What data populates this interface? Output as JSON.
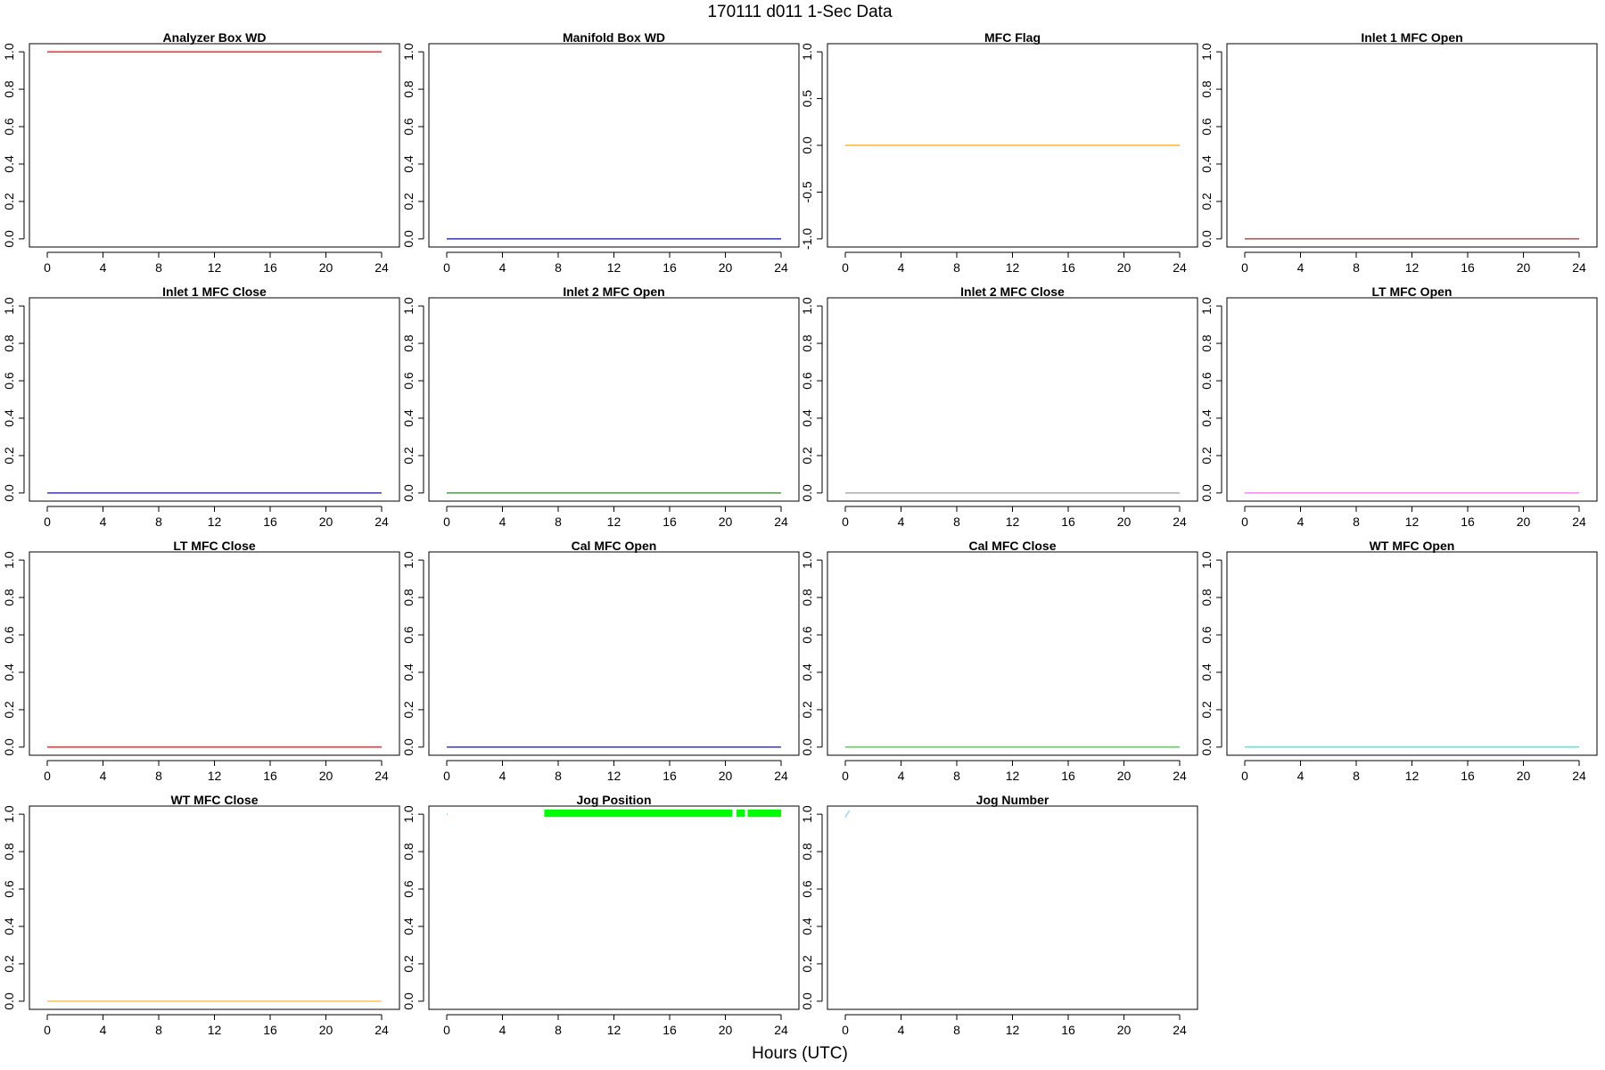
{
  "title": "170111   d011   1-Sec Data",
  "xlabel": "Hours (UTC)",
  "chart_data": [
    {
      "type": "line",
      "title": "Analyzer Box WD",
      "xlim": [
        0,
        24
      ],
      "ylim": [
        0,
        1
      ],
      "xticks": [
        0,
        4,
        8,
        12,
        16,
        20,
        24
      ],
      "yticks": [
        "0.0",
        "0.2",
        "0.4",
        "0.6",
        "0.8",
        "1.0"
      ],
      "series": [
        {
          "color": "#FF0000",
          "x": [
            0,
            24
          ],
          "y": [
            1,
            1
          ]
        }
      ]
    },
    {
      "type": "line",
      "title": "Manifold Box WD",
      "xlim": [
        0,
        24
      ],
      "ylim": [
        0,
        1
      ],
      "xticks": [
        0,
        4,
        8,
        12,
        16,
        20,
        24
      ],
      "yticks": [
        "0.0",
        "0.2",
        "0.4",
        "0.6",
        "0.8",
        "1.0"
      ],
      "series": [
        {
          "color": "#0000FF",
          "x": [
            0,
            24
          ],
          "y": [
            0,
            0
          ]
        }
      ]
    },
    {
      "type": "line",
      "title": "MFC Flag",
      "xlim": [
        0,
        24
      ],
      "ylim": [
        -1,
        1
      ],
      "xticks": [
        0,
        4,
        8,
        12,
        16,
        20,
        24
      ],
      "yticks": [
        "-1.0",
        "-0.5",
        "0.0",
        "0.5",
        "1.0"
      ],
      "series": [
        {
          "color": "#FFA500",
          "x": [
            0,
            24
          ],
          "y": [
            0,
            0
          ]
        }
      ]
    },
    {
      "type": "line",
      "title": "Inlet 1 MFC Open",
      "xlim": [
        0,
        24
      ],
      "ylim": [
        0,
        1
      ],
      "xticks": [
        0,
        4,
        8,
        12,
        16,
        20,
        24
      ],
      "yticks": [
        "0.0",
        "0.2",
        "0.4",
        "0.6",
        "0.8",
        "1.0"
      ],
      "series": [
        {
          "color": "#A52A2A",
          "x": [
            0,
            24
          ],
          "y": [
            0,
            0
          ]
        }
      ]
    },
    {
      "type": "line",
      "title": "Inlet 1 MFC Close",
      "xlim": [
        0,
        24
      ],
      "ylim": [
        0,
        1
      ],
      "xticks": [
        0,
        4,
        8,
        12,
        16,
        20,
        24
      ],
      "yticks": [
        "0.0",
        "0.2",
        "0.4",
        "0.6",
        "0.8",
        "1.0"
      ],
      "series": [
        {
          "color": "#1010B0",
          "x": [
            0,
            24
          ],
          "y": [
            0,
            0
          ]
        }
      ]
    },
    {
      "type": "line",
      "title": "Inlet 2 MFC Open",
      "xlim": [
        0,
        24
      ],
      "ylim": [
        0,
        1
      ],
      "xticks": [
        0,
        4,
        8,
        12,
        16,
        20,
        24
      ],
      "yticks": [
        "0.0",
        "0.2",
        "0.4",
        "0.6",
        "0.8",
        "1.0"
      ],
      "series": [
        {
          "color": "#228B22",
          "x": [
            0,
            24
          ],
          "y": [
            0,
            0
          ]
        }
      ]
    },
    {
      "type": "line",
      "title": "Inlet 2 MFC Close",
      "xlim": [
        0,
        24
      ],
      "ylim": [
        0,
        1
      ],
      "xticks": [
        0,
        4,
        8,
        12,
        16,
        20,
        24
      ],
      "yticks": [
        "0.0",
        "0.2",
        "0.4",
        "0.6",
        "0.8",
        "1.0"
      ],
      "series": [
        {
          "color": "#9E9E9E",
          "x": [
            0,
            24
          ],
          "y": [
            0,
            0
          ]
        }
      ]
    },
    {
      "type": "line",
      "title": "LT MFC Open",
      "xlim": [
        0,
        24
      ],
      "ylim": [
        0,
        1
      ],
      "xticks": [
        0,
        4,
        8,
        12,
        16,
        20,
        24
      ],
      "yticks": [
        "0.0",
        "0.2",
        "0.4",
        "0.6",
        "0.8",
        "1.0"
      ],
      "series": [
        {
          "color": "#FF66FF",
          "x": [
            0,
            24
          ],
          "y": [
            0,
            0
          ]
        }
      ]
    },
    {
      "type": "line",
      "title": "LT MFC Close",
      "xlim": [
        0,
        24
      ],
      "ylim": [
        0,
        1
      ],
      "xticks": [
        0,
        4,
        8,
        12,
        16,
        20,
        24
      ],
      "yticks": [
        "0.0",
        "0.2",
        "0.4",
        "0.6",
        "0.8",
        "1.0"
      ],
      "series": [
        {
          "color": "#FF0000",
          "x": [
            0,
            24
          ],
          "y": [
            0,
            0
          ]
        }
      ]
    },
    {
      "type": "line",
      "title": "Cal MFC Open",
      "xlim": [
        0,
        24
      ],
      "ylim": [
        0,
        1
      ],
      "xticks": [
        0,
        4,
        8,
        12,
        16,
        20,
        24
      ],
      "yticks": [
        "0.0",
        "0.2",
        "0.4",
        "0.6",
        "0.8",
        "1.0"
      ],
      "series": [
        {
          "color": "#1010B0",
          "x": [
            0,
            24
          ],
          "y": [
            0,
            0
          ]
        }
      ]
    },
    {
      "type": "line",
      "title": "Cal MFC Close",
      "xlim": [
        0,
        24
      ],
      "ylim": [
        0,
        1
      ],
      "xticks": [
        0,
        4,
        8,
        12,
        16,
        20,
        24
      ],
      "yticks": [
        "0.0",
        "0.2",
        "0.4",
        "0.6",
        "0.8",
        "1.0"
      ],
      "series": [
        {
          "color": "#32CD32",
          "x": [
            0,
            24
          ],
          "y": [
            0,
            0
          ]
        }
      ]
    },
    {
      "type": "line",
      "title": "WT MFC Open",
      "xlim": [
        0,
        24
      ],
      "ylim": [
        0,
        1
      ],
      "xticks": [
        0,
        4,
        8,
        12,
        16,
        20,
        24
      ],
      "yticks": [
        "0.0",
        "0.2",
        "0.4",
        "0.6",
        "0.8",
        "1.0"
      ],
      "series": [
        {
          "color": "#40E0D0",
          "x": [
            0,
            24
          ],
          "y": [
            0,
            0
          ]
        }
      ]
    },
    {
      "type": "line",
      "title": "WT MFC Close",
      "xlim": [
        0,
        24
      ],
      "ylim": [
        0,
        1
      ],
      "xticks": [
        0,
        4,
        8,
        12,
        16,
        20,
        24
      ],
      "yticks": [
        "0.0",
        "0.2",
        "0.4",
        "0.6",
        "0.8",
        "1.0"
      ],
      "series": [
        {
          "color": "#FFB732",
          "x": [
            0,
            24
          ],
          "y": [
            0,
            0
          ]
        }
      ]
    },
    {
      "type": "line",
      "title": "Jog Position",
      "xlim": [
        0,
        24
      ],
      "ylim": [
        0,
        1
      ],
      "xticks": [
        0,
        4,
        8,
        12,
        16,
        20,
        24
      ],
      "yticks": [
        "0.0",
        "0.2",
        "0.4",
        "0.6",
        "0.8",
        "1.0"
      ],
      "series": [
        {
          "color": "#00FF00",
          "x": [
            0,
            0.05
          ],
          "y": [
            1,
            1
          ]
        }
      ],
      "bands": [
        {
          "color": "#00FF00",
          "x0": 7.0,
          "x1": 20.5,
          "y0": 0.985,
          "y1": 1.025
        },
        {
          "color": "#00FF00",
          "x0": 20.8,
          "x1": 21.4,
          "y0": 0.985,
          "y1": 1.025
        },
        {
          "color": "#00FF00",
          "x0": 21.6,
          "x1": 24.0,
          "y0": 0.985,
          "y1": 1.025
        }
      ]
    },
    {
      "type": "line",
      "title": "Jog Number",
      "xlim": [
        0,
        24
      ],
      "ylim": [
        0,
        1
      ],
      "xticks": [
        0,
        4,
        8,
        12,
        16,
        20,
        24
      ],
      "yticks": [
        "0.0",
        "0.2",
        "0.4",
        "0.6",
        "0.8",
        "1.0"
      ],
      "series": [
        {
          "color": "#87CEFA",
          "x": [
            0,
            0.3
          ],
          "y": [
            0.985,
            1.02
          ]
        }
      ]
    }
  ]
}
